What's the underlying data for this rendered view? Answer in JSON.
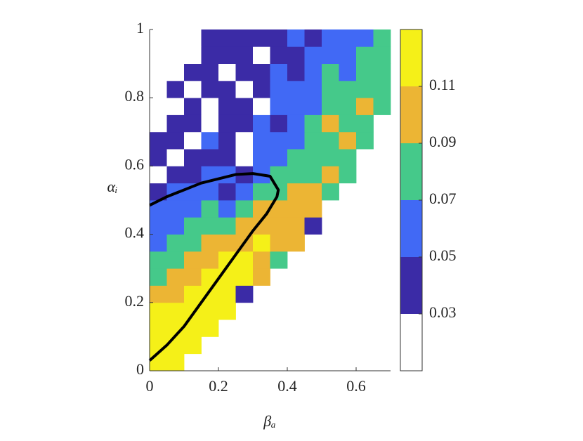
{
  "chart_data": {
    "type": "heatmap",
    "xlabel": "βₐ",
    "ylabel": "αᵢ",
    "xlim": [
      0,
      0.7
    ],
    "ylim": [
      0,
      1
    ],
    "xticks": [
      0,
      0.2,
      0.4,
      0.6
    ],
    "yticks": [
      0,
      0.2,
      0.4,
      0.6,
      0.8,
      1
    ],
    "x_bins": [
      0,
      0.05,
      0.1,
      0.15,
      0.2,
      0.25,
      0.3,
      0.35,
      0.4,
      0.45,
      0.5,
      0.55,
      0.6,
      0.65,
      0.7
    ],
    "y_bins": [
      0,
      0.05,
      0.1,
      0.15,
      0.2,
      0.25,
      0.3,
      0.35,
      0.4,
      0.45,
      0.5,
      0.55,
      0.6,
      0.65,
      0.7,
      0.75,
      0.8,
      0.85,
      0.9,
      0.95,
      1
    ],
    "z": [
      [
        0.12,
        0.12,
        null,
        null,
        null,
        null,
        null,
        null,
        null,
        null,
        null,
        null,
        null,
        null
      ],
      [
        0.12,
        0.12,
        0.12,
        null,
        null,
        null,
        null,
        null,
        null,
        null,
        null,
        null,
        null,
        null
      ],
      [
        0.12,
        0.12,
        0.12,
        0.12,
        null,
        null,
        null,
        null,
        null,
        null,
        null,
        null,
        null,
        null
      ],
      [
        0.12,
        0.12,
        0.12,
        0.12,
        0.12,
        null,
        null,
        null,
        null,
        null,
        null,
        null,
        null,
        null
      ],
      [
        0.1,
        0.1,
        0.12,
        0.12,
        0.12,
        0.04,
        null,
        null,
        null,
        null,
        null,
        null,
        null,
        null
      ],
      [
        0.08,
        0.1,
        0.1,
        0.12,
        0.12,
        0.12,
        0.1,
        null,
        null,
        null,
        null,
        null,
        null,
        null
      ],
      [
        0.08,
        0.08,
        0.1,
        0.1,
        0.12,
        0.12,
        0.1,
        0.08,
        null,
        null,
        null,
        null,
        null,
        null
      ],
      [
        0.06,
        0.08,
        0.08,
        0.1,
        0.1,
        0.1,
        0.12,
        0.1,
        0.1,
        null,
        null,
        null,
        null,
        null
      ],
      [
        0.06,
        0.06,
        0.08,
        0.08,
        0.08,
        0.1,
        0.1,
        0.1,
        0.1,
        0.04,
        null,
        null,
        null,
        null
      ],
      [
        0.06,
        0.06,
        0.06,
        0.08,
        0.06,
        0.08,
        0.1,
        0.1,
        0.1,
        0.1,
        null,
        null,
        null,
        null
      ],
      [
        0.04,
        0.06,
        0.06,
        0.06,
        0.04,
        0.06,
        0.08,
        0.08,
        0.1,
        0.1,
        0.08,
        null,
        null,
        null
      ],
      [
        0.02,
        0.04,
        0.04,
        0.06,
        0.06,
        0.04,
        0.06,
        0.08,
        0.08,
        0.08,
        0.1,
        0.08,
        null,
        null
      ],
      [
        0.04,
        0.02,
        0.04,
        0.04,
        0.04,
        0.02,
        0.06,
        0.06,
        0.08,
        0.08,
        0.08,
        0.08,
        null,
        null
      ],
      [
        0.04,
        0.04,
        0.02,
        0.06,
        0.04,
        0.02,
        0.06,
        0.06,
        0.06,
        0.08,
        0.08,
        0.1,
        0.08,
        null
      ],
      [
        0.02,
        0.04,
        0.04,
        0.02,
        0.04,
        0.04,
        0.06,
        0.04,
        0.06,
        0.08,
        0.1,
        0.08,
        0.08,
        null
      ],
      [
        0.02,
        0.02,
        0.04,
        0.02,
        0.04,
        0.04,
        0.02,
        0.06,
        0.06,
        0.06,
        0.08,
        0.08,
        0.1,
        0.08
      ],
      [
        null,
        0.04,
        0.02,
        0.04,
        0.04,
        0.02,
        0.04,
        0.06,
        0.06,
        0.06,
        0.08,
        0.08,
        0.08,
        0.08
      ],
      [
        null,
        0.02,
        0.04,
        0.04,
        0.02,
        0.04,
        0.04,
        0.06,
        0.04,
        0.06,
        0.08,
        0.06,
        0.08,
        0.08
      ],
      [
        null,
        0.02,
        0.02,
        0.04,
        0.04,
        0.04,
        0.02,
        0.04,
        0.04,
        0.06,
        0.06,
        0.06,
        0.08,
        0.08
      ],
      [
        null,
        null,
        0.02,
        0.04,
        0.04,
        0.04,
        0.04,
        0.04,
        0.06,
        0.04,
        0.06,
        0.06,
        0.06,
        0.08
      ]
    ],
    "colorbar": {
      "lim": [
        0.01,
        0.13
      ],
      "ticks": [
        0.03,
        0.05,
        0.07,
        0.09,
        0.11
      ],
      "colors": [
        "#ffffff",
        "#3b2ba6",
        "#4169f5",
        "#45c98a",
        "#ecb534",
        "#f5f018"
      ]
    },
    "curve": {
      "color": "#000000",
      "x": [
        0,
        0.05,
        0.1,
        0.15,
        0.2,
        0.25,
        0.3,
        0.34,
        0.37,
        0.374,
        0.35,
        0.3,
        0.25,
        0.15,
        0.05,
        0
      ],
      "y": [
        0.03,
        0.075,
        0.13,
        0.2,
        0.27,
        0.34,
        0.41,
        0.46,
        0.51,
        0.53,
        0.57,
        0.578,
        0.575,
        0.55,
        0.51,
        0.485
      ]
    }
  }
}
